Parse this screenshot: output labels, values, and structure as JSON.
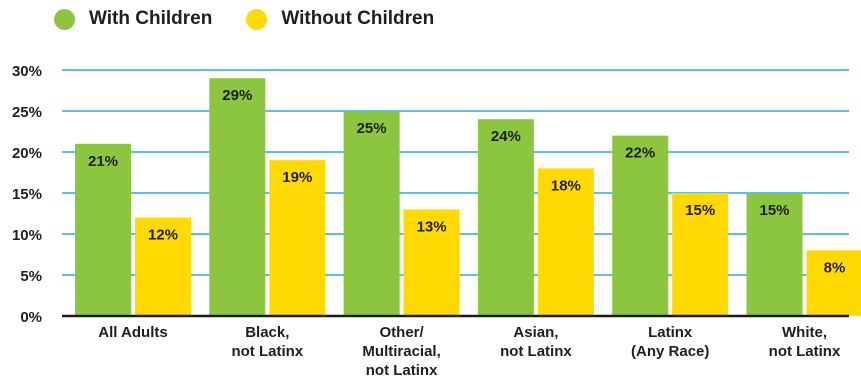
{
  "chart_data": {
    "type": "bar",
    "categories": [
      [
        "All Adults"
      ],
      [
        "Black,",
        "not Latinx"
      ],
      [
        "Other/",
        "Multiracial,",
        "not Latinx"
      ],
      [
        "Asian,",
        "not Latinx"
      ],
      [
        "Latinx",
        "(Any Race)"
      ],
      [
        "White,",
        "not Latinx"
      ]
    ],
    "series": [
      {
        "name": "With Children",
        "color": "#8cc63f",
        "values": [
          21,
          29,
          25,
          24,
          22,
          15
        ],
        "labels": [
          "21%",
          "29%",
          "25%",
          "24%",
          "22%",
          "15%"
        ]
      },
      {
        "name": "Without Children",
        "color": "#ffd900",
        "values": [
          12,
          19,
          13,
          18,
          15,
          8
        ],
        "labels": [
          "12%",
          "19%",
          "13%",
          "18%",
          "15%",
          "8%"
        ]
      }
    ],
    "ylim": [
      0,
      30
    ],
    "yticks": [
      0,
      5,
      10,
      15,
      20,
      25,
      30
    ],
    "ytick_labels": [
      "0%",
      "5%",
      "10%",
      "15%",
      "20%",
      "25%",
      "30%"
    ],
    "grid": true,
    "grid_color": "#29a8e0",
    "legend_position": "top-left",
    "title": "",
    "xlabel": "",
    "ylabel": ""
  }
}
